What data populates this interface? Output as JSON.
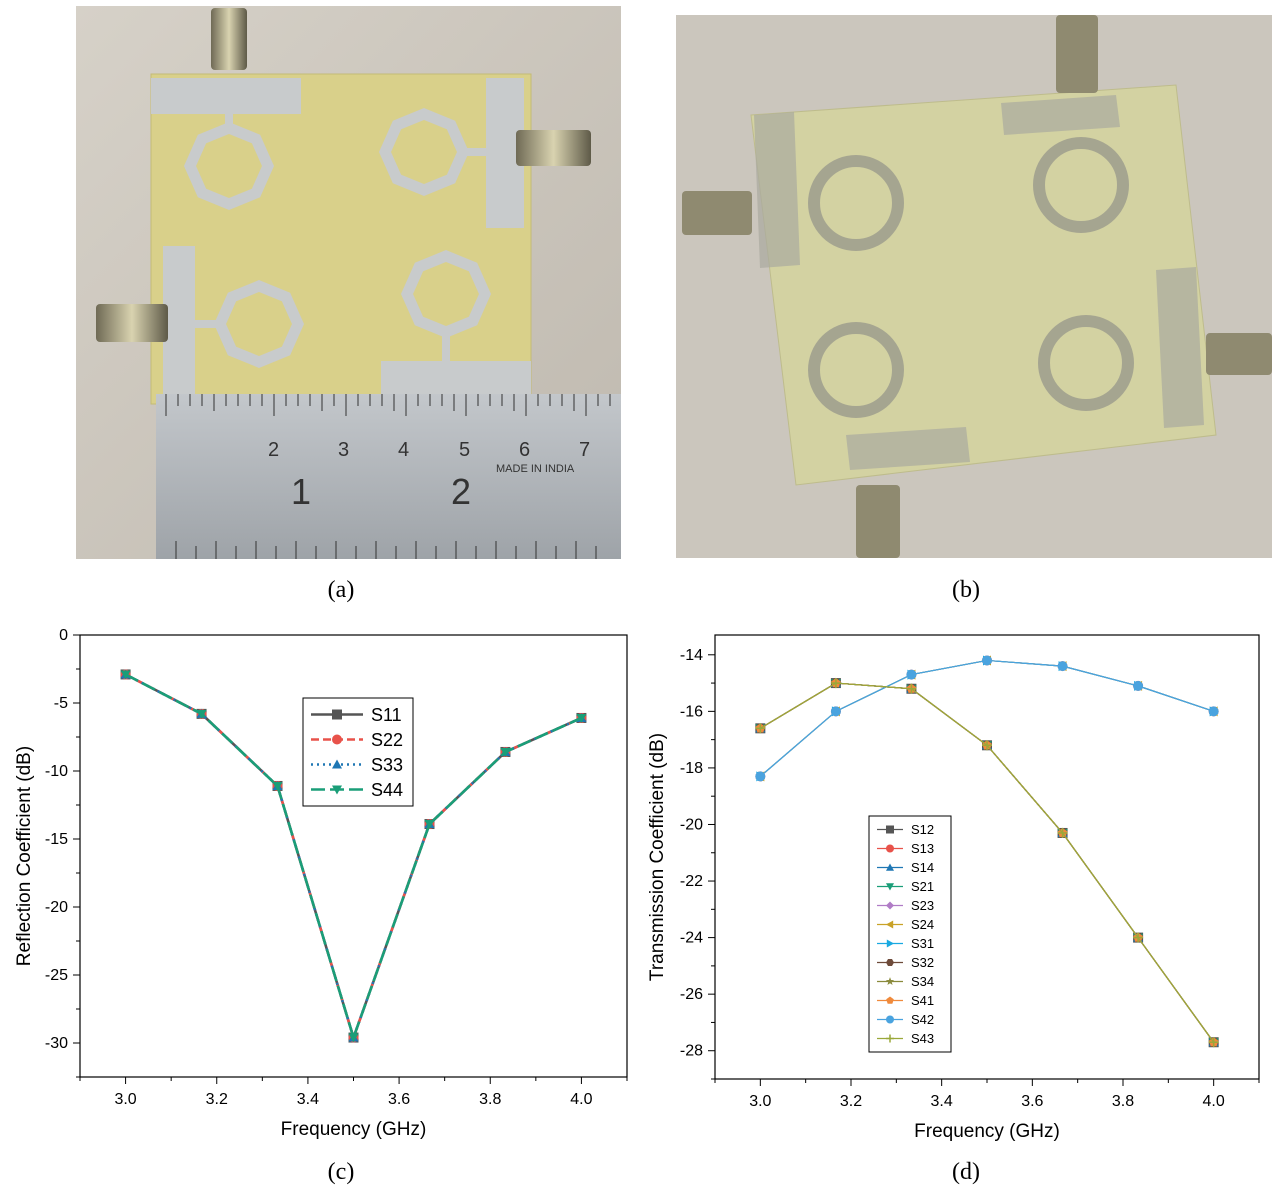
{
  "captions": [
    "(a)",
    "(b)",
    "(c)",
    "(d)"
  ],
  "ruler": {
    "numbers": [
      "2",
      "3",
      "4",
      "5",
      "6",
      "7"
    ],
    "big_numbers": [
      "1",
      "2"
    ],
    "imprint": "MADE IN INDIA"
  },
  "colors": {
    "pcb": "#dcd38e",
    "pcb_back": "#d3d2a2",
    "copper": "#c9ccce",
    "ruler": "#b4b8bd",
    "table": "#cfcac1"
  },
  "chart_data": [
    {
      "type": "line",
      "xlabel": "Frequency (GHz)",
      "ylabel": "Reflection Coefficient (dB)",
      "xlim": [
        2.9,
        4.1
      ],
      "ylim": [
        -32.5,
        0
      ],
      "xticks": [
        3.0,
        3.2,
        3.4,
        3.6,
        3.8,
        4.0
      ],
      "yticks": [
        0,
        -5,
        -10,
        -15,
        -20,
        -25,
        -30
      ],
      "x": [
        3.0,
        3.1667,
        3.3333,
        3.5,
        3.6667,
        3.8333,
        4.0
      ],
      "legend_position": "upper-center",
      "series": [
        {
          "name": "S11",
          "color": "#555555",
          "marker": "square",
          "dash": "solid",
          "values": [
            -2.9,
            -5.8,
            -11.1,
            -29.6,
            -13.9,
            -8.6,
            -6.1
          ]
        },
        {
          "name": "S22",
          "color": "#e8524a",
          "marker": "circle",
          "dash": "dash",
          "values": [
            -2.9,
            -5.8,
            -11.1,
            -29.6,
            -13.9,
            -8.6,
            -6.1
          ]
        },
        {
          "name": "S33",
          "color": "#1f77b4",
          "marker": "triangle-up",
          "dash": "dot",
          "values": [
            -2.9,
            -5.8,
            -11.1,
            -29.6,
            -13.9,
            -8.6,
            -6.1
          ]
        },
        {
          "name": "S44",
          "color": "#1a9e78",
          "marker": "triangle-down",
          "dash": "longdash",
          "values": [
            -2.9,
            -5.8,
            -11.1,
            -29.6,
            -13.9,
            -8.6,
            -6.1
          ]
        }
      ]
    },
    {
      "type": "line",
      "xlabel": "Frequency (GHz)",
      "ylabel": "Transmission Coefficient (dB)",
      "xlim": [
        2.9,
        4.1
      ],
      "ylim": [
        -29,
        -13.3
      ],
      "xticks": [
        3.0,
        3.2,
        3.4,
        3.6,
        3.8,
        4.0
      ],
      "yticks": [
        -14,
        -16,
        -18,
        -20,
        -22,
        -24,
        -26,
        -28
      ],
      "x": [
        3.0,
        3.1667,
        3.3333,
        3.5,
        3.6667,
        3.8333,
        4.0
      ],
      "legend_position": "lower-left",
      "series": [
        {
          "name": "S12",
          "color": "#555555",
          "marker": "square",
          "values": [
            -16.6,
            -15.0,
            -15.2,
            -17.2,
            -20.3,
            -24.0,
            -27.7
          ]
        },
        {
          "name": "S13",
          "color": "#e8524a",
          "marker": "circle",
          "values": [
            -18.3,
            -16.0,
            -14.7,
            -14.2,
            -14.4,
            -15.1,
            -16.0
          ]
        },
        {
          "name": "S14",
          "color": "#1f77b4",
          "marker": "triangle-up",
          "values": [
            -16.6,
            -15.0,
            -15.2,
            -17.2,
            -20.3,
            -24.0,
            -27.7
          ]
        },
        {
          "name": "S21",
          "color": "#1a9e78",
          "marker": "triangle-down",
          "values": [
            -16.6,
            -15.0,
            -15.2,
            -17.2,
            -20.3,
            -24.0,
            -27.7
          ]
        },
        {
          "name": "S23",
          "color": "#b07cc6",
          "marker": "diamond",
          "values": [
            -16.6,
            -15.0,
            -15.2,
            -17.2,
            -20.3,
            -24.0,
            -27.7
          ]
        },
        {
          "name": "S24",
          "color": "#c9a227",
          "marker": "triangle-left",
          "values": [
            -18.3,
            -16.0,
            -14.7,
            -14.2,
            -14.4,
            -15.1,
            -16.0
          ]
        },
        {
          "name": "S31",
          "color": "#19a9e1",
          "marker": "triangle-right",
          "values": [
            -18.3,
            -16.0,
            -14.7,
            -14.2,
            -14.4,
            -15.1,
            -16.0
          ]
        },
        {
          "name": "S32",
          "color": "#6e4b3a",
          "marker": "hexagon",
          "values": [
            -16.6,
            -15.0,
            -15.2,
            -17.2,
            -20.3,
            -24.0,
            -27.7
          ]
        },
        {
          "name": "S34",
          "color": "#8a8a3c",
          "marker": "star",
          "values": [
            -16.6,
            -15.0,
            -15.2,
            -17.2,
            -20.3,
            -24.0,
            -27.7
          ]
        },
        {
          "name": "S41",
          "color": "#f08a3c",
          "marker": "pentagon",
          "values": [
            -16.6,
            -15.0,
            -15.2,
            -17.2,
            -20.3,
            -24.0,
            -27.7
          ]
        },
        {
          "name": "S42",
          "color": "#4aa3df",
          "marker": "sphere",
          "values": [
            -18.3,
            -16.0,
            -14.7,
            -14.2,
            -14.4,
            -15.1,
            -16.0
          ]
        },
        {
          "name": "S43",
          "color": "#9aa83a",
          "marker": "plus",
          "values": [
            -16.6,
            -15.0,
            -15.2,
            -17.2,
            -20.3,
            -24.0,
            -27.7
          ]
        }
      ]
    }
  ]
}
